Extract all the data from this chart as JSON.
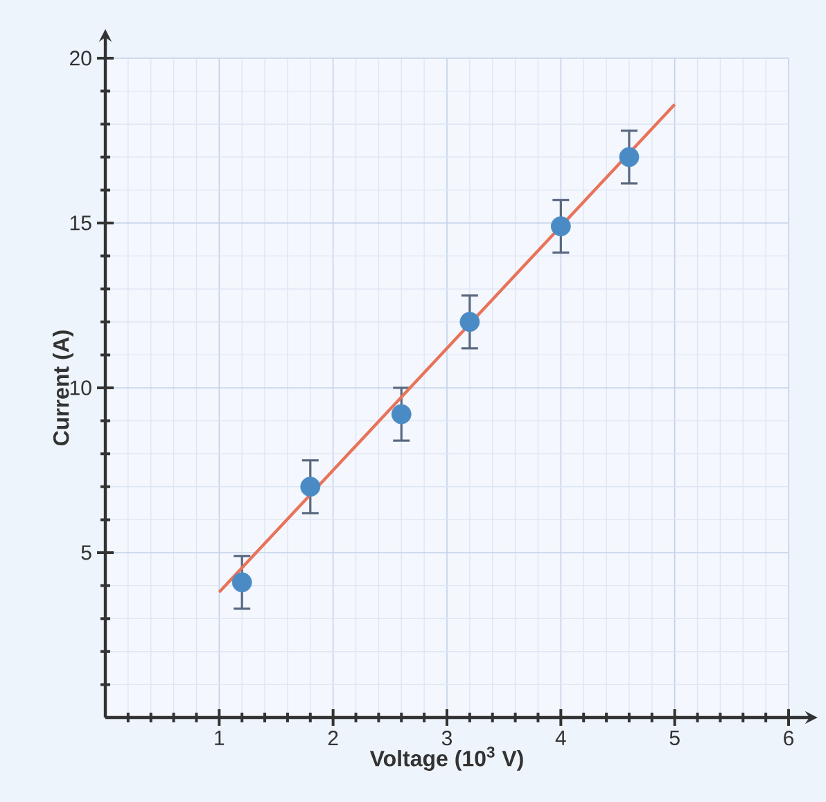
{
  "chart_data": {
    "type": "scatter",
    "xlabel": "Voltage (10$^{3}$ V)",
    "ylabel": "Current (A)",
    "xlim": [
      0,
      6
    ],
    "ylim": [
      0,
      20
    ],
    "xticks": [
      {
        "value": 0.2,
        "label": null
      },
      {
        "value": 0.4,
        "label": null
      },
      {
        "value": 0.6,
        "label": null
      },
      {
        "value": 0.8,
        "label": null
      },
      1,
      {
        "value": 1.2,
        "label": null
      },
      {
        "value": 1.4,
        "label": null
      },
      {
        "value": 1.6,
        "label": null
      },
      {
        "value": 1.8,
        "label": null
      },
      2,
      {
        "value": 2.2,
        "label": null
      },
      {
        "value": 2.4,
        "label": null
      },
      {
        "value": 2.6,
        "label": null
      },
      {
        "value": 2.8,
        "label": null
      },
      3,
      {
        "value": 3.2,
        "label": null
      },
      {
        "value": 3.4,
        "label": null
      },
      {
        "value": 3.6,
        "label": null
      },
      {
        "value": 3.8,
        "label": null
      },
      4,
      {
        "value": 4.2,
        "label": null
      },
      {
        "value": 4.4,
        "label": null
      },
      {
        "value": 4.6,
        "label": null
      },
      {
        "value": 4.8,
        "label": null
      },
      5,
      {
        "value": 5.2,
        "label": null
      },
      {
        "value": 5.4,
        "label": null
      },
      {
        "value": 5.6,
        "label": null
      },
      {
        "value": 5.8,
        "label": null
      },
      6
    ],
    "yticks": [
      {
        "value": 1,
        "label": null
      },
      {
        "value": 2,
        "label": null
      },
      {
        "value": 3,
        "label": null
      },
      {
        "value": 4,
        "label": null
      },
      5,
      {
        "value": 6,
        "label": null
      },
      {
        "value": 7,
        "label": null
      },
      {
        "value": 8,
        "label": null
      },
      {
        "value": 9,
        "label": null
      },
      10,
      {
        "value": 11,
        "label": null
      },
      {
        "value": 12,
        "label": null
      },
      {
        "value": 13,
        "label": null
      },
      {
        "value": 14,
        "label": null
      },
      15,
      {
        "value": 16,
        "label": null
      },
      {
        "value": 17,
        "label": null
      },
      {
        "value": 18,
        "label": null
      },
      {
        "value": 19,
        "label": null
      },
      20
    ],
    "grid": true,
    "series": [
      {
        "type": "scatter",
        "marker": "circle",
        "color": "#4a8bc6",
        "x": [
          1.2,
          1.8,
          2.6,
          3.2,
          4.0,
          4.6
        ],
        "values": [
          4.1,
          7.0,
          9.2,
          12.0,
          14.9,
          17.0
        ],
        "errors": [
          0.8,
          0.8,
          0.8,
          0.8,
          0.8,
          0.8
        ]
      },
      {
        "type": "line",
        "color": "#e8735a",
        "x": [
          1,
          5
        ],
        "values": [
          3.8,
          18.6
        ]
      }
    ]
  }
}
